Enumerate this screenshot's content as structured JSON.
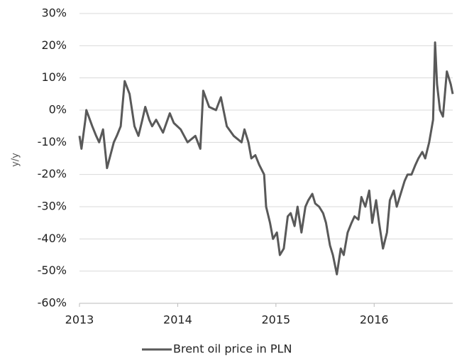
{
  "chart_data": {
    "type": "line",
    "y_label": "y/y",
    "x": [
      2013.0,
      2013.02,
      2013.06,
      2013.07,
      2013.13,
      2013.17,
      2013.2,
      2013.24,
      2013.28,
      2013.35,
      2013.38,
      2013.42,
      2013.46,
      2013.51,
      2013.56,
      2013.6,
      2013.64,
      2013.67,
      2013.71,
      2013.74,
      2013.78,
      2013.85,
      2013.92,
      2013.96,
      2014.03,
      2014.1,
      2014.18,
      2014.23,
      2014.26,
      2014.32,
      2014.39,
      2014.44,
      2014.5,
      2014.57,
      2014.65,
      2014.68,
      2014.72,
      2014.75,
      2014.79,
      2014.83,
      2014.88,
      2014.9,
      2014.94,
      2014.97,
      2015.01,
      2015.04,
      2015.08,
      2015.12,
      2015.15,
      2015.19,
      2015.22,
      2015.26,
      2015.3,
      2015.33,
      2015.37,
      2015.4,
      2015.44,
      2015.48,
      2015.51,
      2015.55,
      2015.58,
      2015.62,
      2015.66,
      2015.69,
      2015.73,
      2015.77,
      2015.8,
      2015.84,
      2015.87,
      2015.91,
      2015.95,
      2015.98,
      2016.02,
      2016.05,
      2016.09,
      2016.13,
      2016.16,
      2016.2,
      2016.23,
      2016.27,
      2016.31,
      2016.34,
      2016.38,
      2016.42,
      2016.45,
      2016.49,
      2016.52,
      2016.56,
      2016.6,
      2016.62,
      2016.64,
      2016.67,
      2016.7,
      2016.74,
      2016.78,
      2016.8
    ],
    "series": [
      {
        "name": "Brent oil price in PLN",
        "color": "#595959",
        "values": [
          -8,
          -12,
          -3,
          0,
          -5,
          -8,
          -10,
          -6,
          -18,
          -10,
          -8,
          -5,
          9,
          5,
          -5,
          -8,
          -3,
          1,
          -3,
          -5,
          -3,
          -7,
          -1,
          -4,
          -6,
          -10,
          -8,
          -12,
          6,
          1,
          0,
          4,
          -5,
          -8,
          -10,
          -6,
          -10,
          -15,
          -14,
          -17,
          -20,
          -30,
          -35,
          -40,
          -38,
          -45,
          -43,
          -33,
          -32,
          -36,
          -30,
          -38,
          -30,
          -28,
          -26,
          -29,
          -30,
          -32,
          -35,
          -42,
          -45,
          -51,
          -43,
          -45,
          -38,
          -35,
          -33,
          -34,
          -27,
          -30,
          -25,
          -35,
          -28,
          -35,
          -43,
          -38,
          -28,
          -25,
          -30,
          -26,
          -22,
          -20,
          -20,
          -17,
          -15,
          -13,
          -15,
          -10,
          -3,
          21,
          8,
          0,
          -2,
          12,
          8,
          5
        ]
      }
    ],
    "xlim": [
      2013,
      2016.8
    ],
    "xticks": [
      2013,
      2014,
      2015,
      2016
    ],
    "ylim": [
      -60,
      30
    ],
    "yticks": [
      {
        "value": -60,
        "label": "-60%"
      },
      {
        "value": -50,
        "label": "-50%"
      },
      {
        "value": -40,
        "label": "-40%"
      },
      {
        "value": -30,
        "label": "-30%"
      },
      {
        "value": -20,
        "label": "-20%"
      },
      {
        "value": -10,
        "label": "-10%"
      },
      {
        "value": 0,
        "label": "0%"
      },
      {
        "value": 10,
        "label": "10%"
      },
      {
        "value": 20,
        "label": "20%"
      },
      {
        "value": 30,
        "label": "30%"
      }
    ],
    "grid": true,
    "legend": "bottom"
  }
}
